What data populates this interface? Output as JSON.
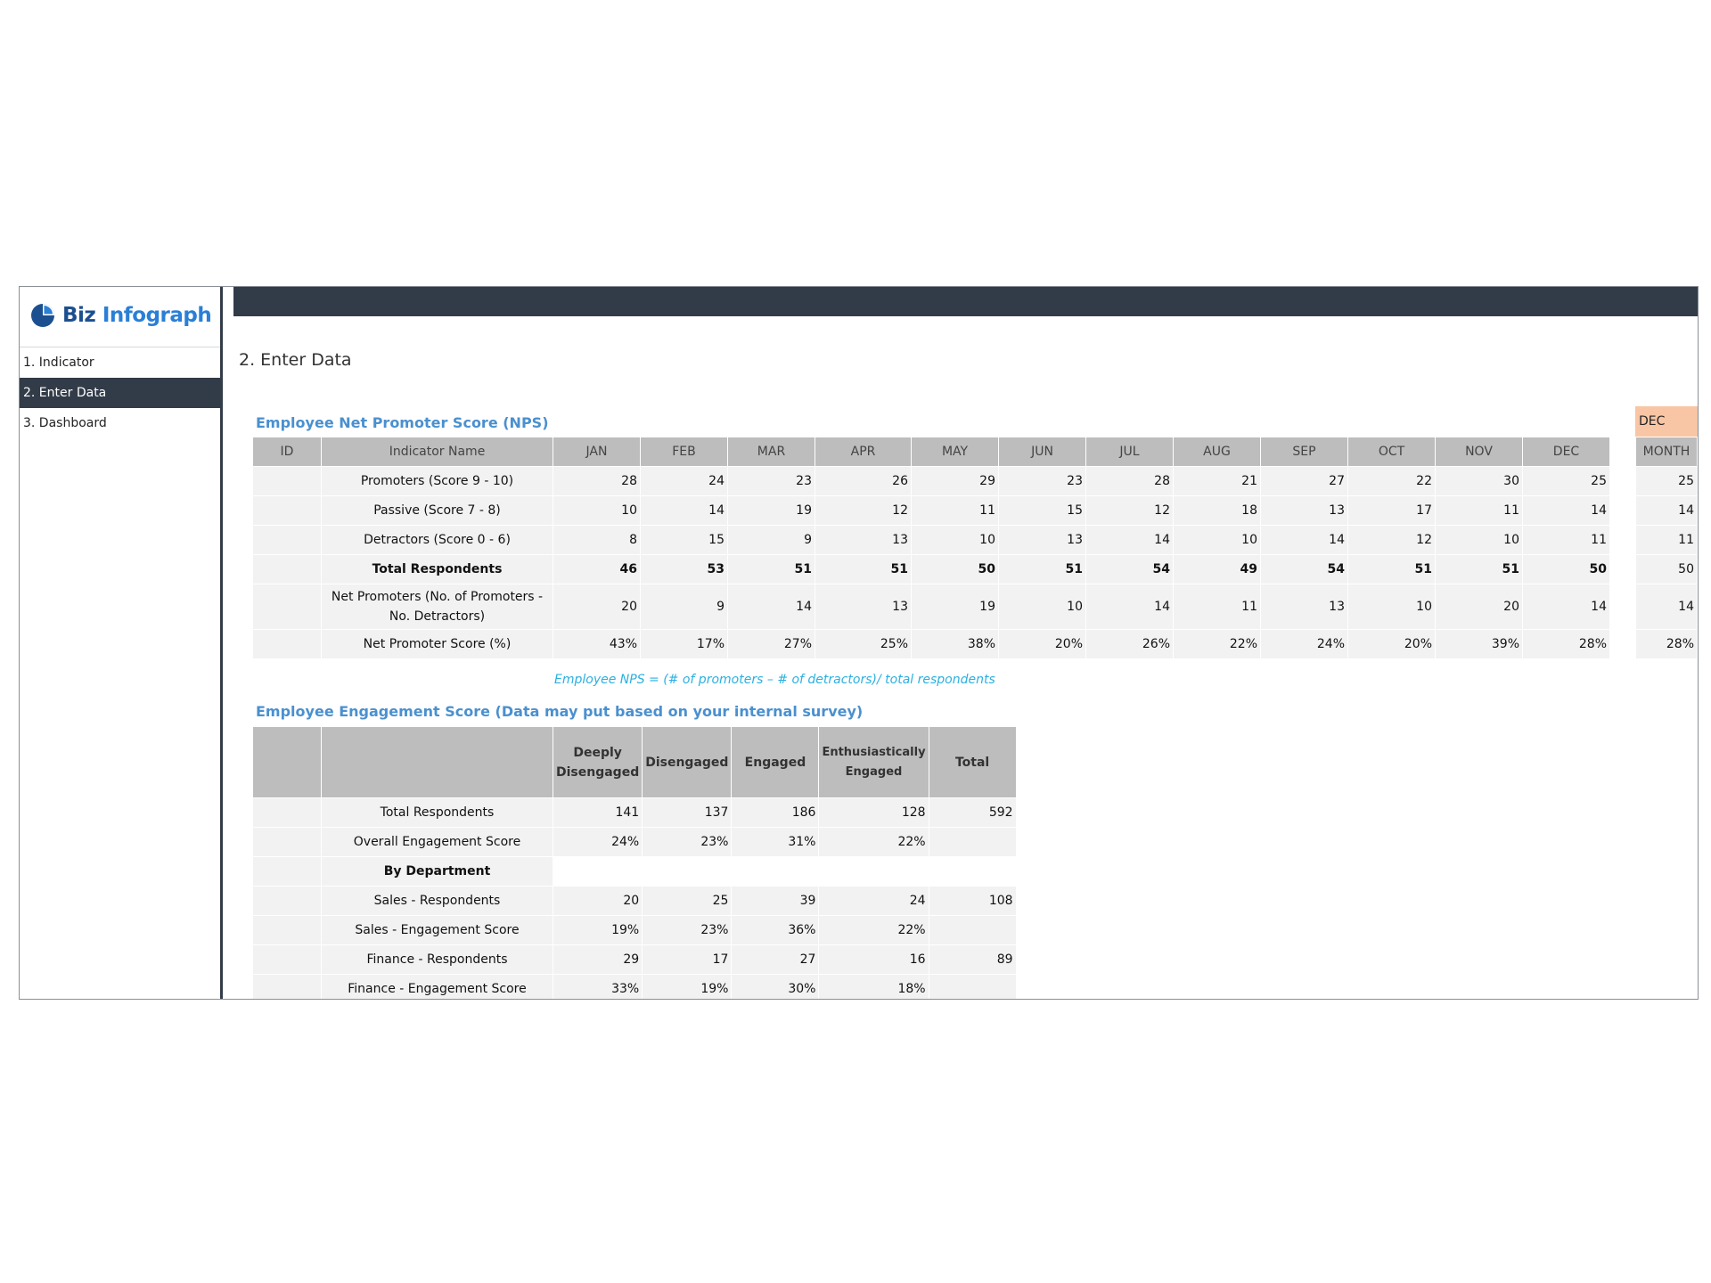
{
  "brand": {
    "name_part1": "Biz",
    "name_part2": "Infograph",
    "accent": "#2a7fd6"
  },
  "sidebar": {
    "items": [
      {
        "label": "1. Indicator",
        "active": false
      },
      {
        "label": "2. Enter Data",
        "active": true
      },
      {
        "label": "3. Dashboard",
        "active": false
      }
    ]
  },
  "page": {
    "title": "2. Enter Data"
  },
  "nps": {
    "title": "Employee Net Promoter Score (NPS)",
    "headers": [
      "ID",
      "Indicator Name",
      "JAN",
      "FEB",
      "MAR",
      "APR",
      "MAY",
      "JUN",
      "JUL",
      "AUG",
      "SEP",
      "OCT",
      "NOV",
      "DEC"
    ],
    "rows": [
      {
        "name": "Promoters (Score 9 - 10)",
        "values": [
          "28",
          "24",
          "23",
          "26",
          "29",
          "23",
          "28",
          "21",
          "27",
          "22",
          "30",
          "25"
        ]
      },
      {
        "name": "Passive (Score 7 - 8)",
        "values": [
          "10",
          "14",
          "19",
          "12",
          "11",
          "15",
          "12",
          "18",
          "13",
          "17",
          "11",
          "14"
        ]
      },
      {
        "name": "Detractors (Score 0 - 6)",
        "values": [
          "8",
          "15",
          "9",
          "13",
          "10",
          "13",
          "14",
          "10",
          "14",
          "12",
          "10",
          "11"
        ]
      },
      {
        "name": "Total Respondents",
        "values": [
          "46",
          "53",
          "51",
          "51",
          "50",
          "51",
          "54",
          "49",
          "54",
          "51",
          "51",
          "50"
        ]
      },
      {
        "name": "Net Promoters (No. of Promoters - No. Detractors)",
        "values": [
          "20",
          "9",
          "14",
          "13",
          "19",
          "10",
          "14",
          "11",
          "13",
          "10",
          "20",
          "14"
        ]
      },
      {
        "name": "Net Promoter Score (%)",
        "values": [
          "43%",
          "17%",
          "27%",
          "25%",
          "38%",
          "20%",
          "26%",
          "22%",
          "24%",
          "20%",
          "39%",
          "28%"
        ]
      }
    ],
    "formula_note": "Employee NPS = (# of promoters – # of detractors)/ total respondents"
  },
  "month_panel": {
    "selected_month": "DEC",
    "header": "MONTH",
    "values": [
      "25",
      "14",
      "11",
      "50",
      "14",
      "28%"
    ]
  },
  "engagement": {
    "title": "Employee Engagement Score (Data may put based on your internal survey)",
    "headers": [
      "",
      "",
      "Deeply Disengaged",
      "Disengaged",
      "Engaged",
      "Enthusiastically Engaged",
      "Total"
    ],
    "rows": [
      {
        "name": "Total Respondents",
        "values": [
          "141",
          "137",
          "186",
          "128",
          "592"
        ]
      },
      {
        "name": "Overall Engagement Score",
        "values": [
          "24%",
          "23%",
          "31%",
          "22%",
          ""
        ]
      },
      {
        "name": "By Department",
        "values": [
          "",
          "",
          "",
          "",
          ""
        ]
      },
      {
        "name": "Sales - Respondents",
        "values": [
          "20",
          "25",
          "39",
          "24",
          "108"
        ]
      },
      {
        "name": "Sales - Engagement Score",
        "values": [
          "19%",
          "23%",
          "36%",
          "22%",
          ""
        ]
      },
      {
        "name": "Finance - Respondents",
        "values": [
          "29",
          "17",
          "27",
          "16",
          "89"
        ]
      },
      {
        "name": "Finance - Engagement Score",
        "values": [
          "33%",
          "19%",
          "30%",
          "18%",
          ""
        ]
      }
    ]
  }
}
